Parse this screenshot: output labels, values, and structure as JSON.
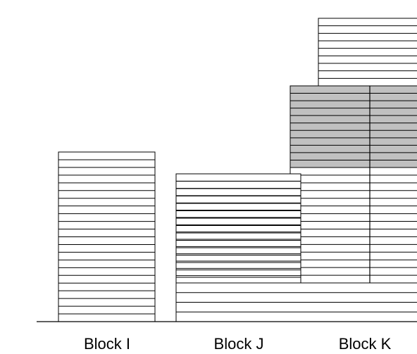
{
  "colors": {
    "background": "#ffffff",
    "line": "#000000",
    "floor_fill": "#ffffff",
    "shaded_fill": "#c0c0c0"
  },
  "blocks": [
    {
      "label": "Block I"
    },
    {
      "label": "Block J"
    },
    {
      "label": "Block K"
    }
  ]
}
